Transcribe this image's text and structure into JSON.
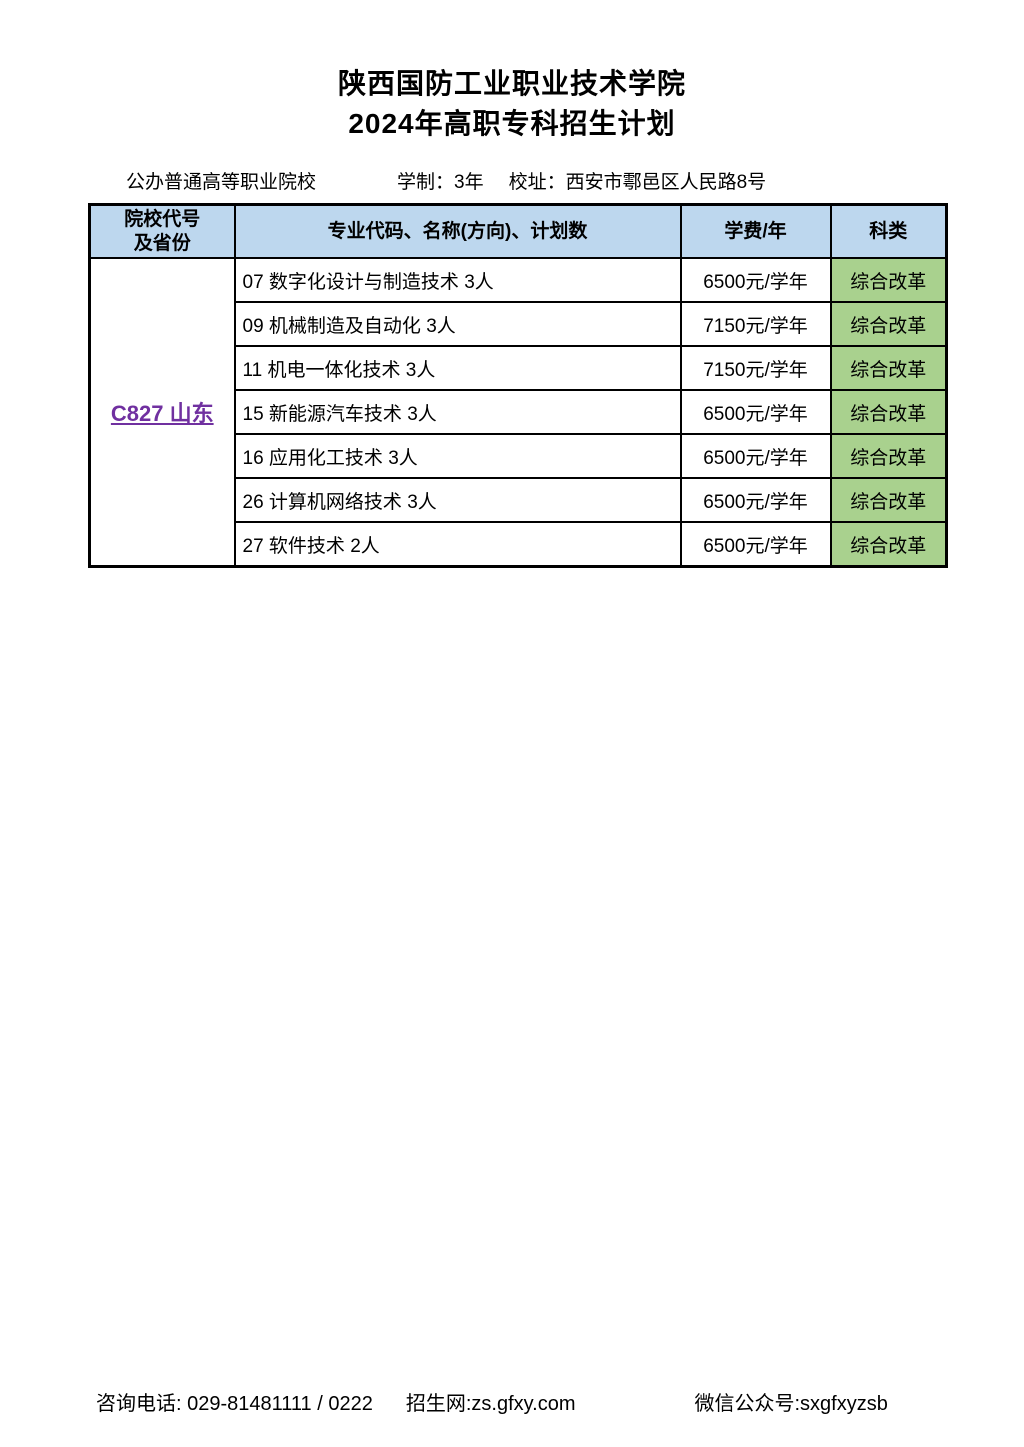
{
  "page": {
    "title_line1": "陕西国防工业职业技术学院",
    "title_line2": "2024年高职专科招生计划"
  },
  "info": {
    "school_type": "公办普通高等职业院校",
    "duration": "学制：3年",
    "address": "校址：西安市鄠邑区人民路8号"
  },
  "table": {
    "headers": {
      "college_line1": "院校代号",
      "college_line2": "及省份",
      "major": "专业代码、名称(方向)、计划数",
      "tuition": "学费/年",
      "category": "科类"
    },
    "college_code": "C827 山东",
    "rows": [
      {
        "major": "07 数字化设计与制造技术 3人",
        "tuition": "6500元/学年",
        "category": "综合改革"
      },
      {
        "major": "09 机械制造及自动化 3人",
        "tuition": "7150元/学年",
        "category": "综合改革"
      },
      {
        "major": "11 机电一体化技术 3人",
        "tuition": "7150元/学年",
        "category": "综合改革"
      },
      {
        "major": "15 新能源汽车技术 3人",
        "tuition": "6500元/学年",
        "category": "综合改革"
      },
      {
        "major": "16 应用化工技术 3人",
        "tuition": "6500元/学年",
        "category": "综合改革"
      },
      {
        "major": "26 计算机网络技术 3人",
        "tuition": "6500元/学年",
        "category": "综合改革"
      },
      {
        "major": "27 软件技术 2人",
        "tuition": "6500元/学年",
        "category": "综合改革"
      }
    ]
  },
  "footer": {
    "phone": "咨询电话: 029-81481111 / 0222",
    "website": "招生网:zs.gfxy.com",
    "wechat": "微信公众号:sxgfxyzsb"
  },
  "colors": {
    "header_bg": "#BDD7EE",
    "category_bg": "#A9D18E",
    "college_code": "#7030A0",
    "border": "#000000"
  }
}
